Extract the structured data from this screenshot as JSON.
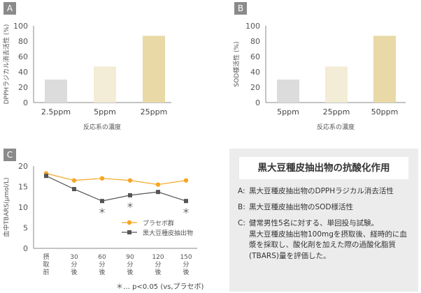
{
  "chart_data": [
    {
      "type": "bar",
      "panel": "A",
      "ylabel": "DPPHラジカル消去活性 (%)",
      "xlabel": "反応系の濃度",
      "categories": [
        "2.5ppm",
        "5ppm",
        "25ppm"
      ],
      "values": [
        30,
        47,
        87
      ],
      "colors": [
        "#dcdcdc",
        "#f3ecd6",
        "#e8d9a6"
      ],
      "ylim": [
        0,
        100
      ],
      "yticks": [
        0,
        20,
        40,
        60,
        80,
        100
      ]
    },
    {
      "type": "bar",
      "panel": "B",
      "ylabel": "SOD様活性 (%)",
      "xlabel": "反応系の濃度",
      "categories": [
        "5ppm",
        "25ppm",
        "50ppm"
      ],
      "values": [
        30,
        47,
        87
      ],
      "colors": [
        "#dcdcdc",
        "#f3ecd6",
        "#e8d9a6"
      ],
      "ylim": [
        0,
        100
      ],
      "yticks": [
        0,
        20,
        40,
        60,
        80,
        100
      ]
    },
    {
      "type": "line",
      "panel": "C",
      "ylabel": "血中TBARS(μmol/L)",
      "categories": [
        [
          "摂",
          "取",
          "前"
        ],
        [
          "30",
          "分",
          "後"
        ],
        [
          "60",
          "分",
          "後"
        ],
        [
          "90",
          "分",
          "後"
        ],
        [
          "120",
          "分",
          "後"
        ],
        [
          "150",
          "分",
          "後"
        ]
      ],
      "ylim": [
        0,
        20
      ],
      "yticks": [
        0,
        5,
        10,
        15,
        20
      ],
      "series": [
        {
          "name": "プラセボ群",
          "color": "#f5a623",
          "marker": "circle",
          "values": [
            18.2,
            16.5,
            17.0,
            16.5,
            15.5,
            16.5
          ]
        },
        {
          "name": "黒大豆種皮抽出物",
          "color": "#555555",
          "marker": "square",
          "values": [
            17.6,
            14.4,
            11.5,
            12.9,
            13.7,
            11.5
          ]
        }
      ],
      "significance": [
        {
          "index": 2,
          "mark": "＊"
        },
        {
          "index": 3,
          "mark": "＊"
        },
        {
          "index": 5,
          "mark": "＊"
        }
      ],
      "footnote": "＊… p<0.05 (vs,プラセボ)"
    }
  ],
  "panels": {
    "a": "A",
    "b": "B",
    "c": "C"
  },
  "info": {
    "title": "黒大豆種皮抽出物の抗酸化作用",
    "items": [
      {
        "label": "A:",
        "text": "黒大豆種皮抽出物のDPPHラジカル消去活性"
      },
      {
        "label": "B:",
        "text": "黒大豆種皮抽出物のSOD様活性"
      },
      {
        "label": "C:",
        "text": "健常男性5名に対する、単回投与試験。",
        "sub": "黒大豆種皮抽出物100mgを摂取後、経時的に血漿を採取し、酸化剤を加えた際の過酸化脂質(TBARS)量を評価した。"
      }
    ]
  }
}
